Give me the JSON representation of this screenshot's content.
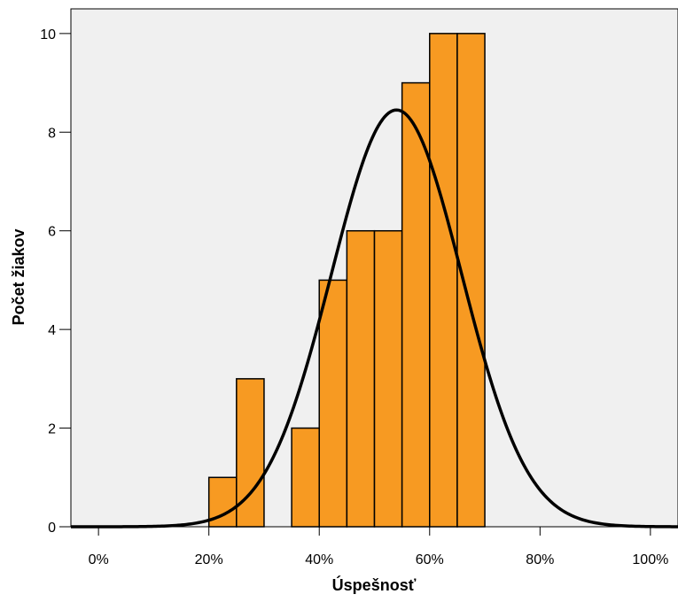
{
  "chart_data": {
    "type": "bar",
    "subtype": "histogram with normal curve",
    "xlabel": "Úspešnosť",
    "ylabel": "Počet žiakov",
    "xlim": [
      -0.05,
      1.05
    ],
    "ylim": [
      0,
      10.5
    ],
    "x_ticks": [
      {
        "value": 0.0,
        "label": "0%"
      },
      {
        "value": 0.2,
        "label": "20%"
      },
      {
        "value": 0.4,
        "label": "40%"
      },
      {
        "value": 0.6,
        "label": "60%"
      },
      {
        "value": 0.8,
        "label": "80%"
      },
      {
        "value": 1.0,
        "label": "100%"
      }
    ],
    "y_ticks": [
      {
        "value": 0,
        "label": "0"
      },
      {
        "value": 2,
        "label": "2"
      },
      {
        "value": 4,
        "label": "4"
      },
      {
        "value": 6,
        "label": "6"
      },
      {
        "value": 8,
        "label": "8"
      },
      {
        "value": 10,
        "label": "10"
      }
    ],
    "bins": [
      {
        "start": 0.2,
        "end": 0.25,
        "count": 1
      },
      {
        "start": 0.25,
        "end": 0.3,
        "count": 3
      },
      {
        "start": 0.35,
        "end": 0.4,
        "count": 2
      },
      {
        "start": 0.4,
        "end": 0.45,
        "count": 5
      },
      {
        "start": 0.45,
        "end": 0.5,
        "count": 6
      },
      {
        "start": 0.5,
        "end": 0.55,
        "count": 6
      },
      {
        "start": 0.55,
        "end": 0.6,
        "count": 9
      },
      {
        "start": 0.6,
        "end": 0.65,
        "count": 10
      },
      {
        "start": 0.65,
        "end": 0.7,
        "count": 10
      }
    ],
    "normal_curve": {
      "mean": 0.54,
      "sd": 0.118,
      "peak": 8.45
    },
    "colors": {
      "plot_background": "#f0f0f0",
      "bar_fill": "#f79a22",
      "bar_stroke": "#000000",
      "curve": "#000000"
    },
    "grid": false
  }
}
